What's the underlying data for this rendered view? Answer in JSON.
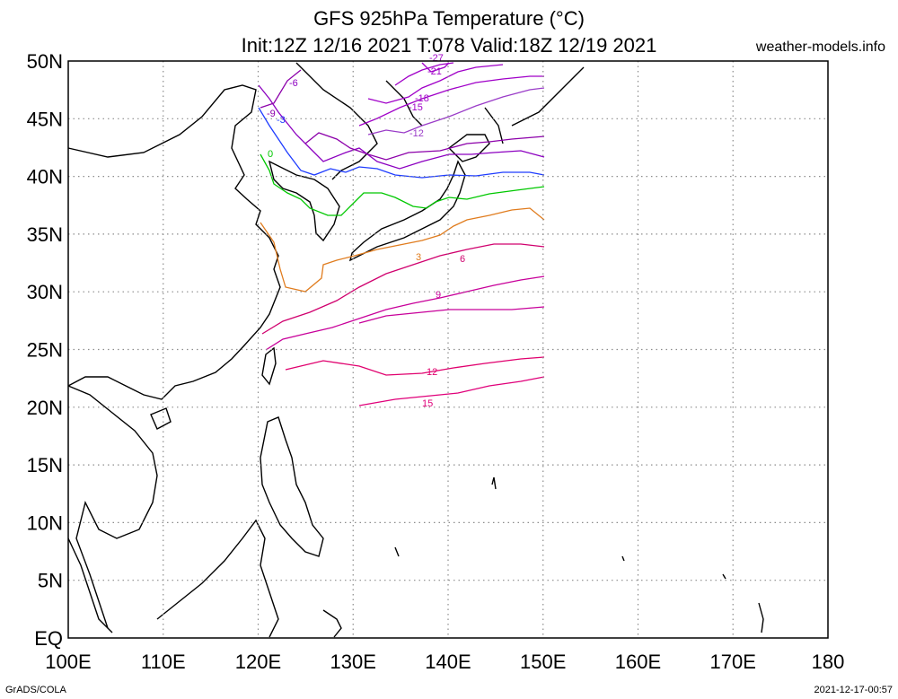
{
  "header": {
    "title_line1": "GFS 925hPa Temperature (°C)",
    "title_line2": "Init:12Z 12/16 2021 T:078 Valid:18Z 12/19 2021",
    "brand": "weather-models.info"
  },
  "footer": {
    "left": "GrADS/COLA",
    "right": "2021-12-17-00:57"
  },
  "map": {
    "lon_labels": [
      "100E",
      "110E",
      "120E",
      "130E",
      "140E",
      "150E",
      "160E",
      "170E",
      "180"
    ],
    "lat_labels": [
      "EQ",
      "5N",
      "10N",
      "15N",
      "20N",
      "25N",
      "30N",
      "35N",
      "40N",
      "45N",
      "50N"
    ],
    "lon_values": [
      100,
      110,
      120,
      130,
      140,
      150,
      160,
      170,
      180
    ],
    "lat_values": [
      0,
      5,
      10,
      15,
      20,
      25,
      30,
      35,
      40,
      45,
      50
    ],
    "data_extent_lon": [
      120,
      150
    ],
    "data_extent_lat": [
      22,
      50
    ],
    "contour_labels": [
      "-27",
      "-21",
      "-18",
      "-15",
      "-12",
      "-9",
      "-6",
      "-3",
      "0",
      "3",
      "6",
      "9",
      "12",
      "15"
    ],
    "colors": {
      "-27": "#a000c8",
      "-21": "#a000c8",
      "-18": "#a000c8",
      "-15": "#a000c8",
      "-12": "#9a3cc8",
      "-9": "#8c00aa",
      "-6": "#8c00c0",
      "-3": "#1e3cff",
      "0": "#00c800",
      "3": "#e07c1e",
      "6": "#d0006e",
      "9": "#c8009a",
      "12": "#e0006e",
      "15": "#e0007a"
    }
  }
}
